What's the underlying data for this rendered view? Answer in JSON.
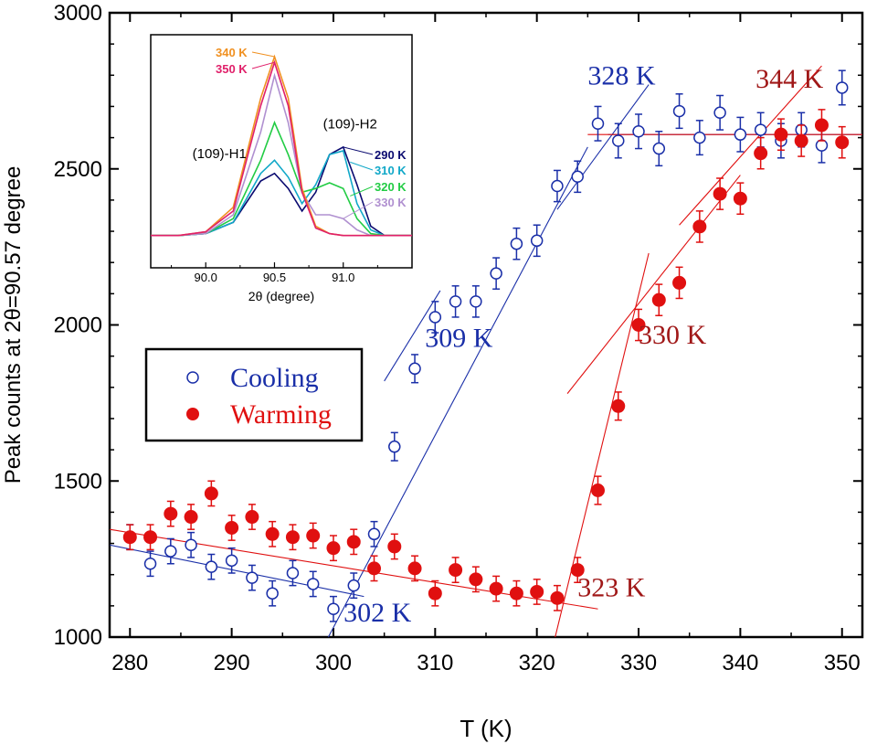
{
  "chart_data": [
    {
      "type": "scatter",
      "xlabel": "T (K)",
      "ylabel": "Peak counts at 2θ=90.57 degree",
      "xlim": [
        278,
        352
      ],
      "ylim": [
        1000,
        3000
      ],
      "xticks": [
        280,
        290,
        300,
        310,
        320,
        330,
        340,
        350
      ],
      "yticks": [
        1000,
        1500,
        2000,
        2500,
        3000
      ],
      "legend": {
        "placement": "middle-left",
        "items": [
          {
            "label": "Cooling",
            "marker": "open-circle",
            "color": "#1a2fa8"
          },
          {
            "label": "Warming",
            "marker": "filled-circle",
            "color": "#e01010"
          }
        ]
      },
      "series": [
        {
          "name": "Cooling",
          "color": "#1a2fa8",
          "marker": "open",
          "x": [
            280,
            282,
            284,
            286,
            288,
            290,
            292,
            294,
            296,
            298,
            300,
            302,
            304,
            306,
            308,
            310,
            312,
            314,
            316,
            318,
            320,
            322,
            324,
            326,
            328,
            330,
            332,
            334,
            336,
            338,
            340,
            342,
            344,
            346,
            348,
            350
          ],
          "y": [
            1320,
            1235,
            1275,
            1295,
            1225,
            1245,
            1190,
            1140,
            1205,
            1170,
            1090,
            1165,
            1330,
            1610,
            1860,
            2025,
            2075,
            2075,
            2165,
            2260,
            2270,
            2445,
            2475,
            2645,
            2590,
            2620,
            2565,
            2685,
            2600,
            2680,
            2610,
            2625,
            2590,
            2625,
            2575,
            2760
          ],
          "err": [
            40,
            40,
            40,
            40,
            40,
            40,
            40,
            40,
            40,
            40,
            40,
            40,
            40,
            45,
            45,
            50,
            50,
            50,
            50,
            50,
            50,
            50,
            50,
            55,
            55,
            55,
            55,
            55,
            55,
            55,
            55,
            55,
            55,
            55,
            55,
            55
          ]
        },
        {
          "name": "Warming",
          "color": "#e01010",
          "marker": "filled",
          "x": [
            280,
            282,
            284,
            286,
            288,
            290,
            292,
            294,
            296,
            298,
            300,
            302,
            304,
            306,
            308,
            310,
            312,
            314,
            316,
            318,
            320,
            322,
            324,
            326,
            328,
            330,
            332,
            334,
            336,
            338,
            340,
            342,
            344,
            346,
            348,
            350
          ],
          "y": [
            1320,
            1320,
            1395,
            1385,
            1460,
            1350,
            1385,
            1330,
            1320,
            1325,
            1285,
            1305,
            1220,
            1290,
            1220,
            1140,
            1215,
            1185,
            1155,
            1140,
            1145,
            1125,
            1215,
            1470,
            1740,
            2000,
            2080,
            2135,
            2315,
            2420,
            2405,
            2550,
            2610,
            2590,
            2640,
            2585
          ],
          "err": [
            40,
            40,
            40,
            40,
            40,
            40,
            40,
            40,
            40,
            40,
            40,
            40,
            40,
            40,
            40,
            40,
            40,
            40,
            40,
            40,
            40,
            40,
            40,
            45,
            45,
            50,
            50,
            50,
            50,
            50,
            50,
            50,
            50,
            50,
            50,
            50
          ]
        }
      ],
      "fit_lines": [
        {
          "color": "#1a2fa8",
          "x": [
            278,
            303
          ],
          "y": [
            1295,
            1130
          ]
        },
        {
          "color": "#1a2fa8",
          "x": [
            299.5,
            325
          ],
          "y": [
            1000,
            2570
          ]
        },
        {
          "color": "#1a2fa8",
          "x": [
            305,
            310.5
          ],
          "y": [
            1820,
            2110
          ]
        },
        {
          "color": "#1a2fa8",
          "x": [
            322,
            331
          ],
          "y": [
            2370,
            2770
          ]
        },
        {
          "color": "#1a2fa8",
          "x": [
            327,
            352
          ],
          "y": [
            2610,
            2610
          ]
        },
        {
          "color": "#e01010",
          "x": [
            278,
            326
          ],
          "y": [
            1345,
            1090
          ]
        },
        {
          "color": "#e01010",
          "x": [
            321.8,
            331
          ],
          "y": [
            1000,
            2230
          ]
        },
        {
          "color": "#e01010",
          "x": [
            323,
            340
          ],
          "y": [
            1780,
            2480
          ]
        },
        {
          "color": "#e01010",
          "x": [
            334,
            348
          ],
          "y": [
            2320,
            2830
          ]
        },
        {
          "color": "#e01010",
          "x": [
            325,
            352
          ],
          "y": [
            2610,
            2610
          ]
        }
      ],
      "annotations": [
        {
          "text": "328 K",
          "color": "#1a2fa8",
          "x": 325,
          "y": 2770
        },
        {
          "text": "309 K",
          "color": "#1a2fa8",
          "x": 309,
          "y": 1930
        },
        {
          "text": "302 K",
          "color": "#1a2fa8",
          "x": 301,
          "y": 1050
        },
        {
          "text": "344 K",
          "color": "#a01818",
          "x": 341.5,
          "y": 2760
        },
        {
          "text": "330 K",
          "color": "#a01818",
          "x": 330,
          "y": 1940
        },
        {
          "text": "323 K",
          "color": "#a01818",
          "x": 324,
          "y": 1130
        }
      ]
    },
    {
      "type": "line",
      "xlabel": "2θ (degree)",
      "xlim": [
        89.6,
        91.5
      ],
      "ylim": [
        0,
        1
      ],
      "xticks": [
        "90.0",
        "90.5",
        "91.0"
      ],
      "peak_labels": [
        {
          "text": "(109)-H1",
          "x": 90.1,
          "y": 0.46
        },
        {
          "text": "(109)-H2",
          "x": 91.05,
          "y": 0.62
        }
      ],
      "series": [
        {
          "name": "290 K",
          "color": "#0a0a70",
          "x": [
            89.6,
            89.8,
            90.0,
            90.2,
            90.4,
            90.5,
            90.6,
            90.7,
            90.8,
            90.9,
            91.0,
            91.1,
            91.2,
            91.3,
            91.5
          ],
          "y": [
            0.05,
            0.05,
            0.06,
            0.12,
            0.34,
            0.38,
            0.3,
            0.18,
            0.28,
            0.48,
            0.52,
            0.32,
            0.1,
            0.05,
            0.05
          ]
        },
        {
          "name": "310 K",
          "color": "#11a8c8",
          "x": [
            89.6,
            89.8,
            90.0,
            90.2,
            90.4,
            90.5,
            90.6,
            90.7,
            90.8,
            90.9,
            91.0,
            91.1,
            91.2,
            91.3,
            91.5
          ],
          "y": [
            0.05,
            0.05,
            0.06,
            0.12,
            0.38,
            0.45,
            0.36,
            0.22,
            0.32,
            0.48,
            0.5,
            0.22,
            0.08,
            0.05,
            0.05
          ]
        },
        {
          "name": "320 K",
          "color": "#22cc44",
          "x": [
            89.6,
            89.8,
            90.0,
            90.2,
            90.4,
            90.5,
            90.6,
            90.7,
            90.8,
            90.9,
            91.0,
            91.1,
            91.2,
            91.3,
            91.5
          ],
          "y": [
            0.05,
            0.05,
            0.06,
            0.14,
            0.45,
            0.65,
            0.48,
            0.28,
            0.3,
            0.33,
            0.3,
            0.14,
            0.06,
            0.05,
            0.05
          ]
        },
        {
          "name": "330 K",
          "color": "#b090d0",
          "x": [
            89.6,
            89.8,
            90.0,
            90.2,
            90.4,
            90.5,
            90.6,
            90.7,
            90.8,
            90.9,
            91.0,
            91.1,
            91.2,
            91.3,
            91.5
          ],
          "y": [
            0.05,
            0.05,
            0.06,
            0.16,
            0.6,
            0.9,
            0.65,
            0.28,
            0.16,
            0.16,
            0.14,
            0.08,
            0.05,
            0.05,
            0.05
          ]
        },
        {
          "name": "340 K",
          "color": "#f09020",
          "x": [
            89.6,
            89.8,
            90.0,
            90.2,
            90.4,
            90.5,
            90.6,
            90.7,
            90.8,
            90.9,
            91.0,
            91.1,
            91.2,
            91.3,
            91.5
          ],
          "y": [
            0.05,
            0.05,
            0.07,
            0.2,
            0.78,
            1.0,
            0.78,
            0.3,
            0.1,
            0.06,
            0.05,
            0.05,
            0.05,
            0.05,
            0.05
          ]
        },
        {
          "name": "350 K",
          "color": "#e0206a",
          "x": [
            89.6,
            89.8,
            90.0,
            90.2,
            90.4,
            90.5,
            90.6,
            90.7,
            90.8,
            90.9,
            91.0,
            91.1,
            91.2,
            91.3,
            91.5
          ],
          "y": [
            0.05,
            0.05,
            0.07,
            0.18,
            0.74,
            0.97,
            0.74,
            0.28,
            0.09,
            0.06,
            0.05,
            0.05,
            0.05,
            0.05,
            0.05
          ]
        }
      ]
    }
  ]
}
